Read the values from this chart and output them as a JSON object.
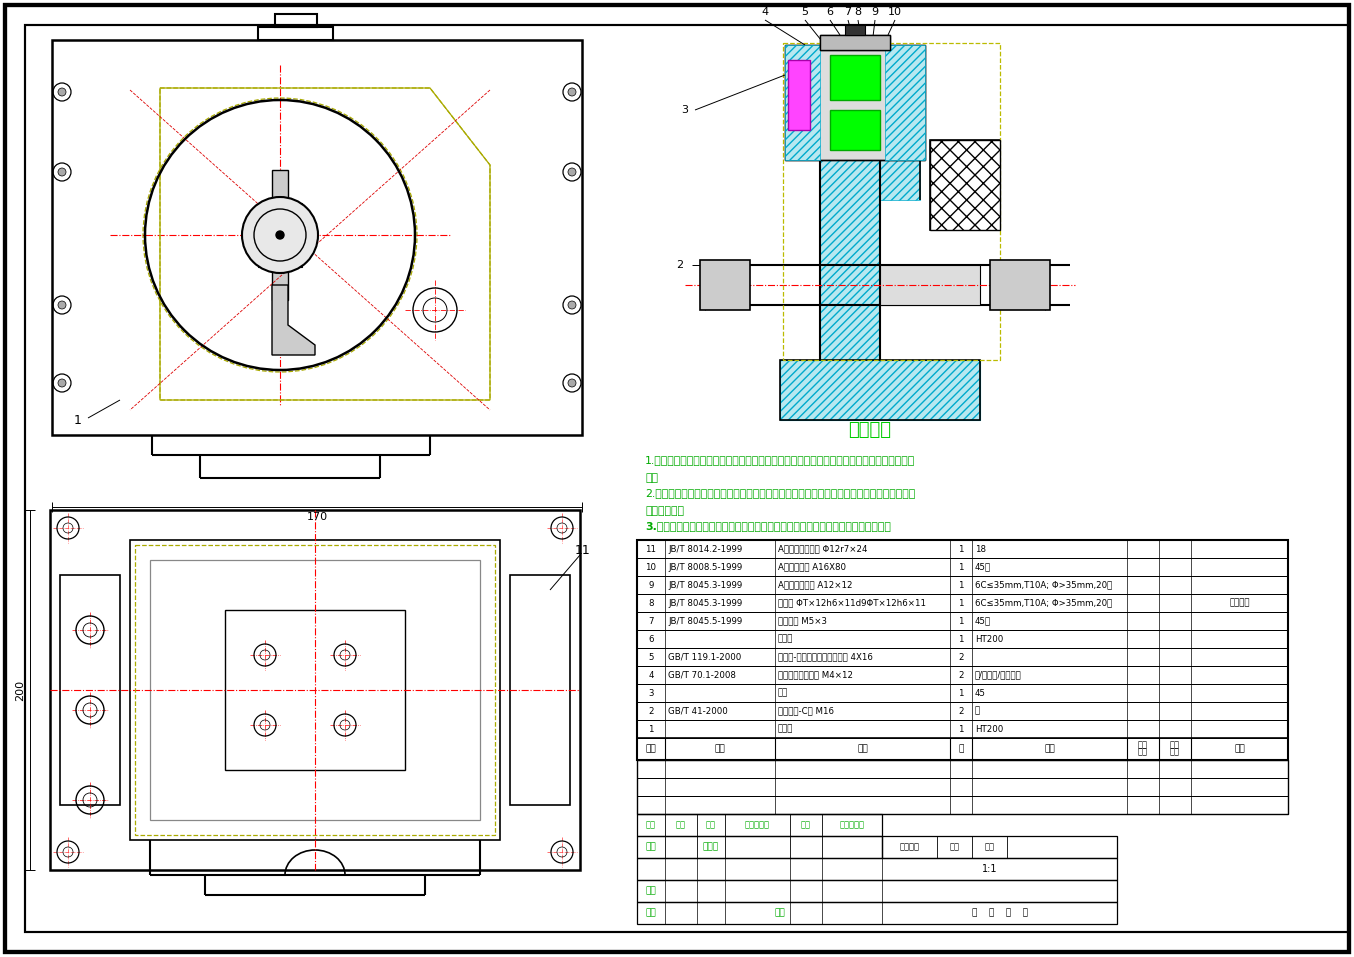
{
  "bg_color": "#FFFFFF",
  "tech_title": "技术要求",
  "tech_req_1": "1.进入装配的零件及部件（包括外购件、外协件），均必须具有检验部门的合格证方能进行装",
  "tech_req_1b": "配。",
  "tech_req_2": "2.零件在装配前必须清理和清洗干净，不得有毛刺、飞边、氧化皮、锈蚀、切屑、油污、着色",
  "tech_req_2b": "剂和灰尘等。",
  "tech_req_3": "3.装配前应对零、部件的主要配合只寸，特别是过渡配合只寸及相关精度进行复查。",
  "parts_table": [
    [
      "11",
      "JB/T 8014.2-1999",
      "A型固定夹紧衬箍 Φ12r7×24",
      "1",
      "18",
      "",
      ""
    ],
    [
      "10",
      "JB/T 8008.5-1999",
      "A型快换垫圈 A16X80",
      "1",
      "45钢",
      "",
      ""
    ],
    [
      "9",
      "JB/T 8045.3-1999",
      "A型钻套用衬套 A12×12",
      "1",
      "6C≤35mm,T10A; Φ>35mm,20钢",
      "",
      ""
    ],
    [
      "8",
      "JB/T 8045.3-1999",
      "快换套 ΦT×12h6×11d9ΦT×12h6×11",
      "1",
      "6C≤35mm,T10A; Φ>35mm,20钢",
      "",
      "插图注释"
    ],
    [
      "7",
      "JB/T 8045.5-1999",
      "钻套螺钉 M5×3",
      "1",
      "45钢",
      "",
      ""
    ],
    [
      "6",
      "",
      "钻模板",
      "1",
      "HT200",
      "",
      ""
    ],
    [
      "5",
      "GB/T 119.1-2000",
      "圆柱销-不锈钢弹簧低碳不锈钢 4X16",
      "2",
      "",
      "",
      ""
    ],
    [
      "4",
      "GB/T 70.1-2008",
      "内六角圆柱头螺钉 M4×12",
      "2",
      "钢/不锈钢/有色金属",
      "",
      ""
    ],
    [
      "3",
      "",
      "心轴",
      "1",
      "45",
      "",
      ""
    ],
    [
      "2",
      "GB/T 41-2000",
      "六角螺母-C级 M16",
      "2",
      "钢",
      "",
      ""
    ],
    [
      "1",
      "",
      "夹具体",
      "1",
      "HT200",
      "",
      ""
    ]
  ],
  "dim_170": "170",
  "dim_200": "200"
}
